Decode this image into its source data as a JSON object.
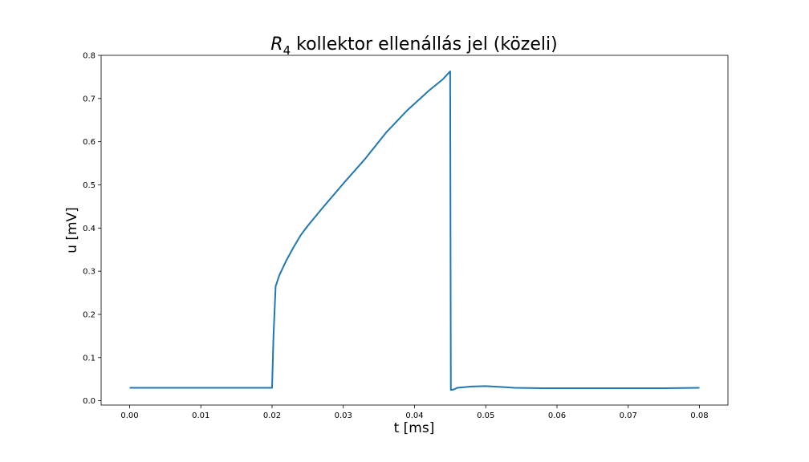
{
  "chart_data": {
    "type": "line",
    "title": {
      "symbol": "R",
      "subscript": "4",
      "text": " kollektor ellenállás jel (közeli)"
    },
    "xlabel": "t [ms]",
    "ylabel": "u [mV]",
    "xlim": [
      -0.004,
      0.084
    ],
    "ylim": [
      -0.01,
      0.8
    ],
    "xticks": [
      0.0,
      0.01,
      0.02,
      0.03,
      0.04,
      0.05,
      0.06,
      0.07,
      0.08
    ],
    "xtick_labels": [
      "0.00",
      "0.01",
      "0.02",
      "0.03",
      "0.04",
      "0.05",
      "0.06",
      "0.07",
      "0.08"
    ],
    "yticks": [
      0.0,
      0.1,
      0.2,
      0.3,
      0.4,
      0.5,
      0.6,
      0.7,
      0.8
    ],
    "ytick_labels": [
      "0.0",
      "0.1",
      "0.2",
      "0.3",
      "0.4",
      "0.5",
      "0.6",
      "0.7",
      "0.8"
    ],
    "grid": false,
    "series": [
      {
        "color": "#1f77b4",
        "x": [
          0.0,
          0.005,
          0.01,
          0.015,
          0.0199,
          0.02,
          0.0202,
          0.0205,
          0.021,
          0.022,
          0.023,
          0.024,
          0.025,
          0.027,
          0.03,
          0.033,
          0.036,
          0.039,
          0.042,
          0.044,
          0.045,
          0.0451,
          0.0455,
          0.046,
          0.048,
          0.05,
          0.052,
          0.054,
          0.058,
          0.065,
          0.07,
          0.075,
          0.08
        ],
        "y": [
          0.03,
          0.03,
          0.03,
          0.03,
          0.03,
          0.03,
          0.15,
          0.265,
          0.29,
          0.325,
          0.355,
          0.383,
          0.405,
          0.445,
          0.503,
          0.559,
          0.621,
          0.673,
          0.718,
          0.745,
          0.763,
          0.025,
          0.026,
          0.03,
          0.033,
          0.034,
          0.032,
          0.03,
          0.029,
          0.029,
          0.029,
          0.029,
          0.03
        ]
      }
    ]
  }
}
